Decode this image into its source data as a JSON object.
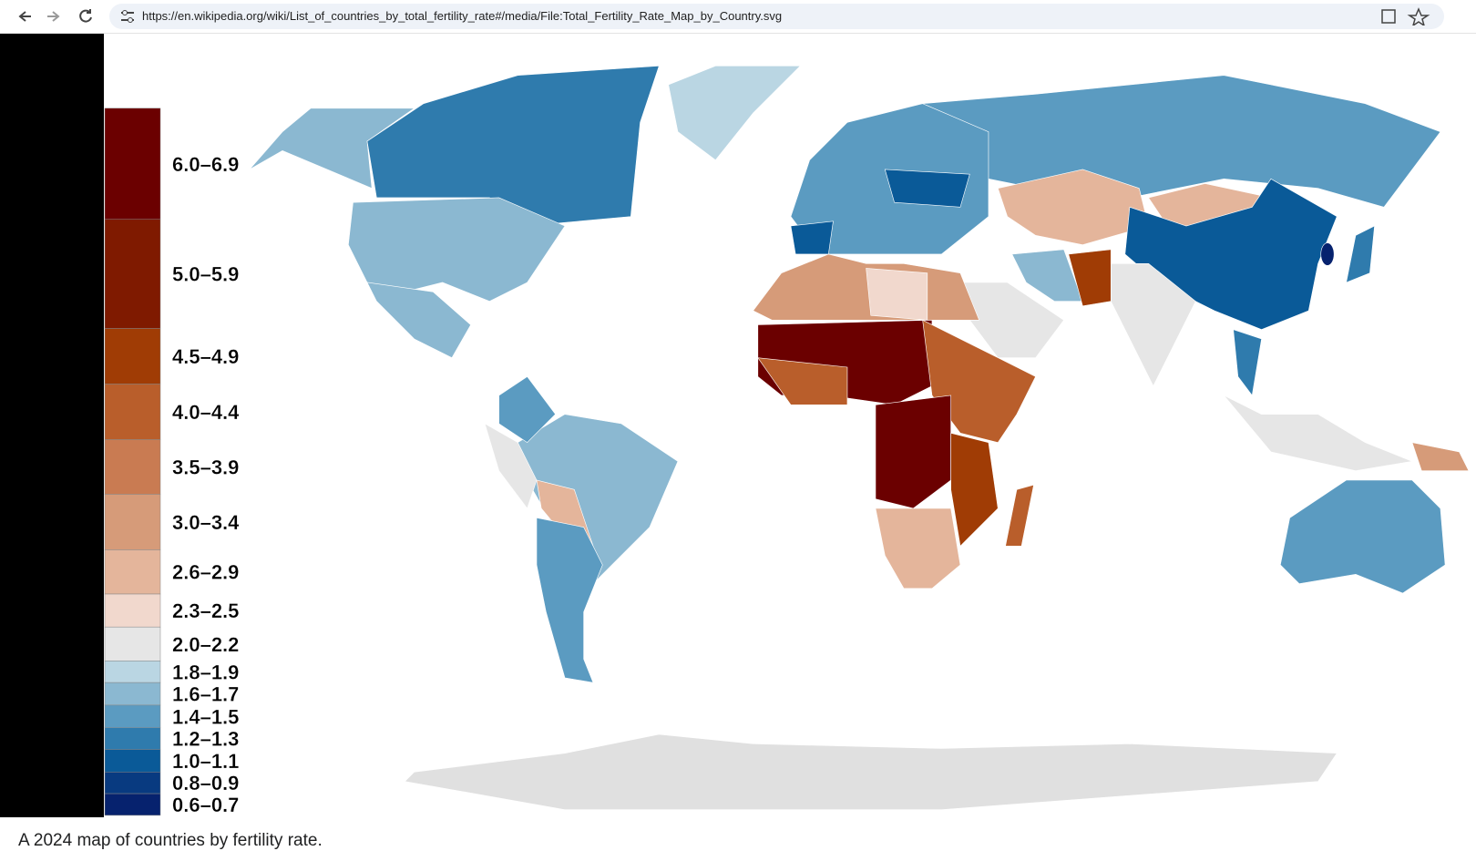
{
  "browser": {
    "url": "https://en.wikipedia.org/wiki/List_of_countries_by_total_fertility_rate#/media/File:Total_Fertility_Rate_Map_by_Country.svg"
  },
  "legend": {
    "items": [
      {
        "label": "6.0–6.9",
        "color": "#6b0000"
      },
      {
        "label": "5.0–5.9",
        "color": "#7f1a00"
      },
      {
        "label": "4.5–4.9",
        "color": "#a03c05"
      },
      {
        "label": "4.0–4.4",
        "color": "#b95e2b"
      },
      {
        "label": "3.5–3.9",
        "color": "#c97b52"
      },
      {
        "label": "3.0–3.4",
        "color": "#d69b79"
      },
      {
        "label": "2.6–2.9",
        "color": "#e4b59b"
      },
      {
        "label": "2.3–2.5",
        "color": "#f1d8cd"
      },
      {
        "label": "2.0–2.2",
        "color": "#e6e6e6"
      },
      {
        "label": "1.8–1.9",
        "color": "#bad6e3"
      },
      {
        "label": "1.6–1.7",
        "color": "#8bb8d1"
      },
      {
        "label": "1.4–1.5",
        "color": "#5b9bc1"
      },
      {
        "label": "1.2–1.3",
        "color": "#2f7bad"
      },
      {
        "label": "1.0–1.1",
        "color": "#0a5a98"
      },
      {
        "label": "0.8–0.9",
        "color": "#083a80"
      },
      {
        "label": "0.6–0.7",
        "color": "#06226e"
      }
    ]
  },
  "caption": "A 2024 map of countries by fertility rate."
}
